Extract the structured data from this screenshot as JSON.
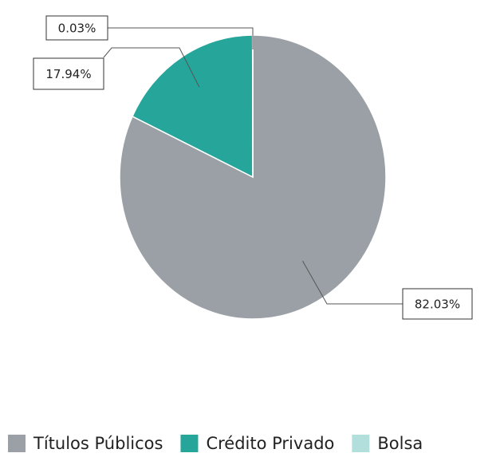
{
  "chart_data": {
    "type": "pie",
    "categories": [
      "Títulos Públicos",
      "Crédito Privado",
      "Bolsa"
    ],
    "values": [
      82.03,
      17.94,
      0.03
    ],
    "value_labels": [
      "82.03%",
      "17.94%",
      "0.03%"
    ],
    "colors": [
      "#9aa0a6",
      "#26a69a",
      "#b2dfdb"
    ],
    "legend": "bottom"
  }
}
